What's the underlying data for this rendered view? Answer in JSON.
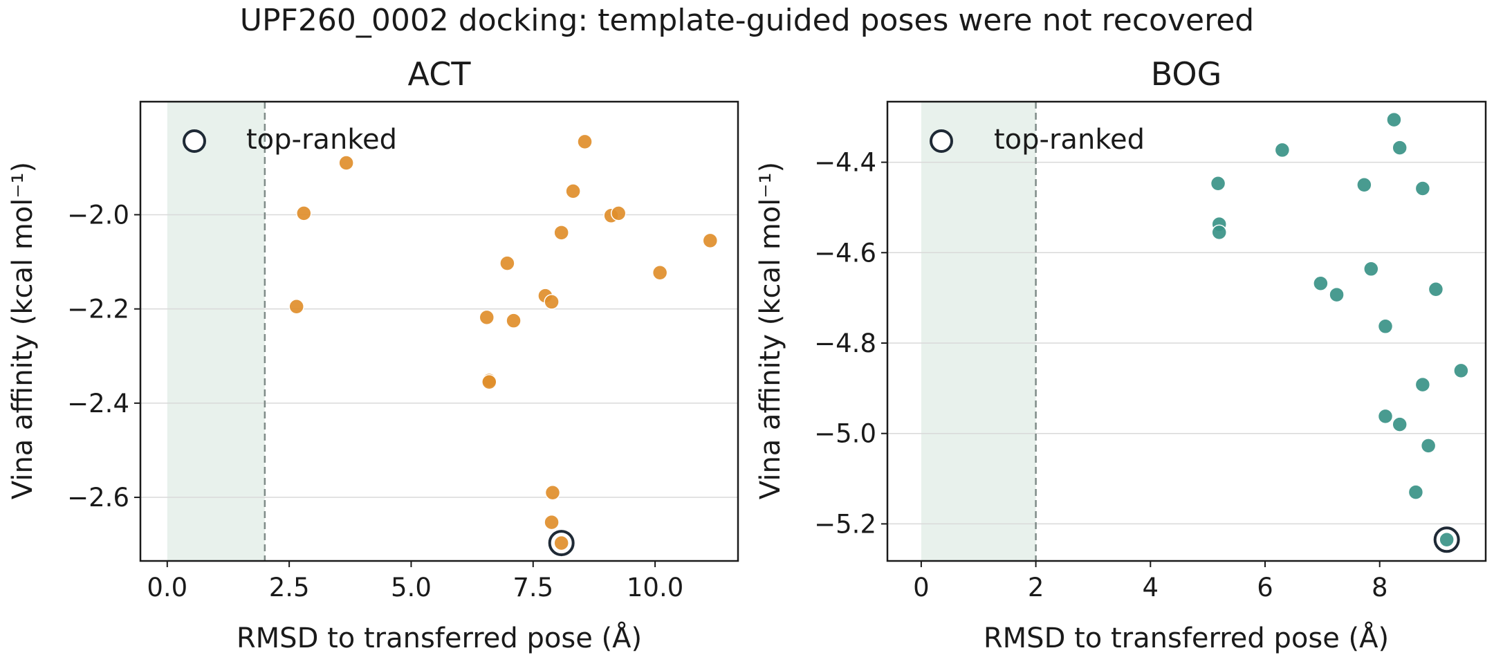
{
  "figure": {
    "suptitle": "UPF260_0002 docking: template-guided poses were not recovered",
    "colors": {
      "background": "#ffffff",
      "shade": "#e8f1ec",
      "threshold_line": "#7f8b88",
      "grid": "#d9d9d9",
      "ring": "#1f2a36"
    }
  },
  "chart_data": [
    {
      "type": "scatter",
      "title": "ACT",
      "xlabel": "RMSD to transferred pose (Å)",
      "ylabel": "Vina affinity (kcal mol⁻¹)",
      "xlim": [
        -0.55,
        11.7
      ],
      "ylim": [
        -2.735,
        -1.76
      ],
      "xticks": [
        0.0,
        2.5,
        5.0,
        7.5,
        10.0
      ],
      "xtick_labels": [
        "0.0",
        "2.5",
        "5.0",
        "7.5",
        "10.0"
      ],
      "yticks": [
        -2.0,
        -2.2,
        -2.4,
        -2.6
      ],
      "ytick_labels": [
        "−2.0",
        "−2.2",
        "−2.4",
        "−2.6"
      ],
      "grid": "horizontal",
      "shaded_region_x": [
        0,
        2
      ],
      "threshold_x": 2,
      "marker_color": "#e08e2b",
      "legend": {
        "label": "top-ranked",
        "position": "top-left"
      },
      "x": [
        2.65,
        2.8,
        3.67,
        6.55,
        6.6,
        6.6,
        6.97,
        7.1,
        7.75,
        7.88,
        7.9,
        7.88,
        8.08,
        8.08,
        8.32,
        8.56,
        9.1,
        9.25,
        10.1,
        11.13
      ],
      "y": [
        -2.195,
        -1.997,
        -1.89,
        -2.218,
        -2.352,
        -2.355,
        -2.103,
        -2.225,
        -2.172,
        -2.185,
        -2.59,
        -2.653,
        -2.697,
        -2.038,
        -1.95,
        -1.845,
        -2.002,
        -1.997,
        -2.123,
        -2.055
      ],
      "top_ranked": {
        "x": 8.08,
        "y": -2.697
      }
    },
    {
      "type": "scatter",
      "title": "BOG",
      "xlabel": "RMSD to transferred pose (Å)",
      "ylabel": "Vina affinity (kcal mol⁻¹)",
      "xlim": [
        -0.59,
        9.85
      ],
      "ylim": [
        -5.282,
        -4.266
      ],
      "xticks": [
        0,
        2,
        4,
        6,
        8
      ],
      "xtick_labels": [
        "0",
        "2",
        "4",
        "6",
        "8"
      ],
      "yticks": [
        -4.4,
        -4.6,
        -4.8,
        -5.0,
        -5.2
      ],
      "ytick_labels": [
        "−4.4",
        "−4.6",
        "−4.8",
        "−5.0",
        "−5.2"
      ],
      "grid": "horizontal",
      "shaded_region_x": [
        0,
        2
      ],
      "threshold_x": 2,
      "marker_color": "#3a9287",
      "legend": {
        "label": "top-ranked",
        "position": "top-left"
      },
      "x": [
        5.18,
        5.2,
        5.2,
        6.3,
        6.97,
        7.25,
        7.73,
        7.85,
        8.1,
        8.1,
        8.25,
        8.35,
        8.35,
        8.63,
        8.75,
        8.75,
        8.85,
        8.98,
        9.17,
        9.42
      ],
      "y": [
        -4.447,
        -4.537,
        -4.555,
        -4.373,
        -4.668,
        -4.693,
        -4.45,
        -4.636,
        -4.763,
        -4.962,
        -4.306,
        -4.368,
        -4.98,
        -5.13,
        -4.892,
        -4.458,
        -5.027,
        -4.681,
        -5.235,
        -4.861
      ],
      "top_ranked": {
        "x": 9.17,
        "y": -5.235
      }
    }
  ]
}
